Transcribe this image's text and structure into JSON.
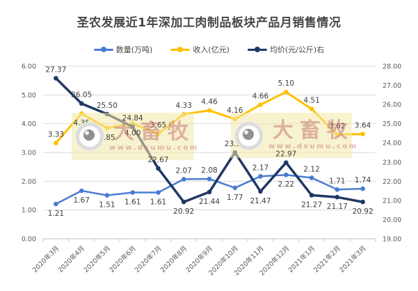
{
  "title": "圣农发展近1年深加工肉制品板块产品月销售情况",
  "title_color": "#474747",
  "watermark": {
    "brand": "大畜牧",
    "url": "www.dxumu.com"
  },
  "chart_data": {
    "type": "line",
    "title": "圣农发展近1年深加工肉制品板块产品月销售情况",
    "legend_position": "top",
    "grid": true,
    "categories": [
      "2020年3月",
      "2020年4月",
      "2020年5月",
      "2020年6月",
      "2020年7月",
      "2020年8月",
      "2020年9月",
      "2020年10月",
      "2020年11月",
      "2020年12月",
      "2021年1月",
      "2021年2月",
      "2021年3月"
    ],
    "series": [
      {
        "name": "数量(万吨)",
        "axis": "left",
        "color": "#4A7CD0",
        "line_width": 2.5,
        "values": [
          1.21,
          1.67,
          1.51,
          1.61,
          1.61,
          2.07,
          2.08,
          1.77,
          2.17,
          2.22,
          2.12,
          1.71,
          1.74
        ],
        "label_side": [
          "below",
          "below",
          "below",
          "below",
          "below",
          "above",
          "above",
          "below",
          "above",
          "below",
          "above",
          "above",
          "above"
        ]
      },
      {
        "name": "收入(亿元)",
        "axis": "left",
        "color": "#FFC000",
        "line_width": 3,
        "values": [
          3.33,
          4.35,
          3.85,
          4.0,
          3.65,
          4.33,
          4.46,
          4.16,
          4.66,
          5.1,
          4.51,
          3.62,
          3.64
        ],
        "label_side": [
          "above",
          "below",
          "below",
          "below",
          "above",
          "above",
          "above",
          "above",
          "above",
          "above",
          "above",
          "above",
          "above"
        ]
      },
      {
        "name": "均价(元/公斤)右",
        "axis": "right",
        "color": "#1F3864",
        "line_width": 3.5,
        "values": [
          27.37,
          26.05,
          25.5,
          24.84,
          22.67,
          20.92,
          21.44,
          23.5,
          21.47,
          22.97,
          21.27,
          21.17,
          20.92
        ],
        "label_side": [
          "above",
          "above",
          "above",
          "above",
          "above",
          "below",
          "below",
          "above",
          "below",
          "above",
          "below",
          "below",
          "below"
        ]
      }
    ],
    "left_axis": {
      "min": 0,
      "max": 6,
      "step": 1,
      "tick_labels": [
        "6.00",
        "5.00",
        "4.00",
        "3.00",
        "2.00",
        "1.00",
        "0.00"
      ]
    },
    "right_axis": {
      "min": 19,
      "max": 28,
      "step": 1,
      "tick_labels": [
        "28.00",
        "27.00",
        "26.00",
        "25.00",
        "24.00",
        "23.00",
        "22.00",
        "21.00",
        "20.00",
        "19.00"
      ]
    },
    "gridline_color": "#D9D9D9",
    "axis_line_color": "#BFBFBF"
  }
}
